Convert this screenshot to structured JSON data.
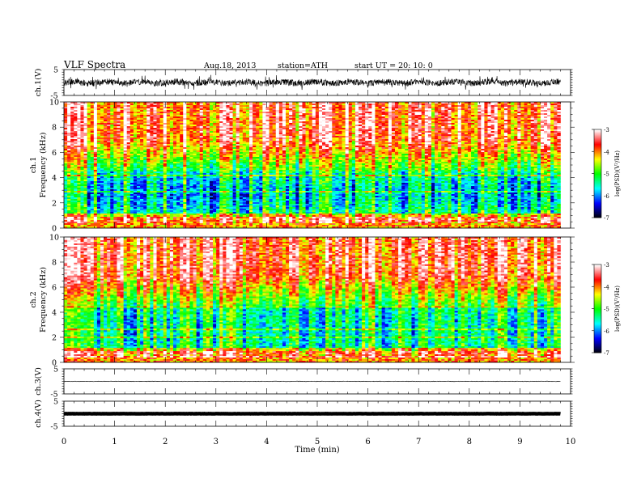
{
  "header": {
    "title": "VLF  Spectra",
    "date": "Aug.18, 2013",
    "station": "station=ATH",
    "start": "start  UT  =    20: 10: 0"
  },
  "colors": {
    "ink": "#000000",
    "colormap": [
      "#000000",
      "#0000ff",
      "#00ffff",
      "#00ff00",
      "#ffff00",
      "#ff0000",
      "#ffffff"
    ]
  },
  "chart_data": [
    {
      "type": "line",
      "name": "ch1-waveform",
      "ylabel": "ch.1(V)",
      "ylim": [
        -5,
        5
      ],
      "y_ticks": [
        "5",
        "-5"
      ],
      "x_range_min": [
        0,
        9.8
      ],
      "amplitude_approx": 1.2
    },
    {
      "type": "heatmap",
      "name": "ch1-spectrogram",
      "ylabel": [
        "ch.1",
        "Frequency  (kHz)"
      ],
      "ylim": [
        0,
        10
      ],
      "y_ticks": [
        "0",
        "2",
        "4",
        "6",
        "8",
        "10"
      ],
      "x_range_min": [
        0,
        9.8
      ],
      "colorbar": {
        "label": "log(PSD)(V²/Hz)",
        "range": [
          -7,
          -3
        ],
        "ticks": [
          "-7",
          "-6",
          "-5",
          "-4",
          "-3"
        ]
      }
    },
    {
      "type": "heatmap",
      "name": "ch2-spectrogram",
      "ylabel": [
        "ch.2",
        "Frequency  (kHz)"
      ],
      "ylim": [
        0,
        10
      ],
      "y_ticks": [
        "0",
        "2",
        "4",
        "6",
        "8",
        "10"
      ],
      "x_range_min": [
        0,
        9.8
      ],
      "colorbar": {
        "label": "log(PSD)(V²/Hz)",
        "range": [
          -7,
          -3
        ],
        "ticks": [
          "-7",
          "-6",
          "-5",
          "-4",
          "-3"
        ]
      }
    },
    {
      "type": "line",
      "name": "ch3-waveform",
      "ylabel": "ch.3(V)",
      "ylim": [
        -5,
        5
      ],
      "y_ticks": [
        "5",
        "-5"
      ],
      "x_range_min": [
        0,
        9.8
      ],
      "amplitude_approx": 0.1
    },
    {
      "type": "line",
      "name": "ch4-waveform",
      "ylabel": "ch.4(V)",
      "ylim": [
        -5,
        5
      ],
      "y_ticks": [
        "5",
        "-5"
      ],
      "x_range_min": [
        0,
        9.8
      ],
      "amplitude_approx": 0.05,
      "offset_approx": 0
    }
  ],
  "x_axis": {
    "label": "Time  (min)",
    "ticks": [
      "0",
      "1",
      "2",
      "3",
      "4",
      "5",
      "6",
      "7",
      "8",
      "9",
      "10"
    ],
    "xlim": [
      0,
      10
    ]
  }
}
